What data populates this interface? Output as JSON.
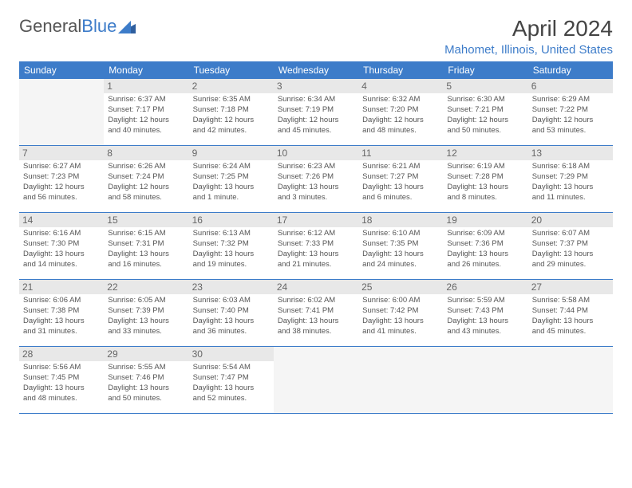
{
  "logo": {
    "text1": "General",
    "text2": "Blue"
  },
  "title": "April 2024",
  "location": "Mahomet, Illinois, United States",
  "colors": {
    "header_bg": "#3d7cc9",
    "header_text": "#ffffff",
    "daynum_bg": "#e8e8e8",
    "border": "#3d7cc9",
    "text": "#555555",
    "accent": "#3d7cc9"
  },
  "days_of_week": [
    "Sunday",
    "Monday",
    "Tuesday",
    "Wednesday",
    "Thursday",
    "Friday",
    "Saturday"
  ],
  "weeks": [
    [
      null,
      {
        "n": "1",
        "sr": "Sunrise: 6:37 AM",
        "ss": "Sunset: 7:17 PM",
        "d1": "Daylight: 12 hours",
        "d2": "and 40 minutes."
      },
      {
        "n": "2",
        "sr": "Sunrise: 6:35 AM",
        "ss": "Sunset: 7:18 PM",
        "d1": "Daylight: 12 hours",
        "d2": "and 42 minutes."
      },
      {
        "n": "3",
        "sr": "Sunrise: 6:34 AM",
        "ss": "Sunset: 7:19 PM",
        "d1": "Daylight: 12 hours",
        "d2": "and 45 minutes."
      },
      {
        "n": "4",
        "sr": "Sunrise: 6:32 AM",
        "ss": "Sunset: 7:20 PM",
        "d1": "Daylight: 12 hours",
        "d2": "and 48 minutes."
      },
      {
        "n": "5",
        "sr": "Sunrise: 6:30 AM",
        "ss": "Sunset: 7:21 PM",
        "d1": "Daylight: 12 hours",
        "d2": "and 50 minutes."
      },
      {
        "n": "6",
        "sr": "Sunrise: 6:29 AM",
        "ss": "Sunset: 7:22 PM",
        "d1": "Daylight: 12 hours",
        "d2": "and 53 minutes."
      }
    ],
    [
      {
        "n": "7",
        "sr": "Sunrise: 6:27 AM",
        "ss": "Sunset: 7:23 PM",
        "d1": "Daylight: 12 hours",
        "d2": "and 56 minutes."
      },
      {
        "n": "8",
        "sr": "Sunrise: 6:26 AM",
        "ss": "Sunset: 7:24 PM",
        "d1": "Daylight: 12 hours",
        "d2": "and 58 minutes."
      },
      {
        "n": "9",
        "sr": "Sunrise: 6:24 AM",
        "ss": "Sunset: 7:25 PM",
        "d1": "Daylight: 13 hours",
        "d2": "and 1 minute."
      },
      {
        "n": "10",
        "sr": "Sunrise: 6:23 AM",
        "ss": "Sunset: 7:26 PM",
        "d1": "Daylight: 13 hours",
        "d2": "and 3 minutes."
      },
      {
        "n": "11",
        "sr": "Sunrise: 6:21 AM",
        "ss": "Sunset: 7:27 PM",
        "d1": "Daylight: 13 hours",
        "d2": "and 6 minutes."
      },
      {
        "n": "12",
        "sr": "Sunrise: 6:19 AM",
        "ss": "Sunset: 7:28 PM",
        "d1": "Daylight: 13 hours",
        "d2": "and 8 minutes."
      },
      {
        "n": "13",
        "sr": "Sunrise: 6:18 AM",
        "ss": "Sunset: 7:29 PM",
        "d1": "Daylight: 13 hours",
        "d2": "and 11 minutes."
      }
    ],
    [
      {
        "n": "14",
        "sr": "Sunrise: 6:16 AM",
        "ss": "Sunset: 7:30 PM",
        "d1": "Daylight: 13 hours",
        "d2": "and 14 minutes."
      },
      {
        "n": "15",
        "sr": "Sunrise: 6:15 AM",
        "ss": "Sunset: 7:31 PM",
        "d1": "Daylight: 13 hours",
        "d2": "and 16 minutes."
      },
      {
        "n": "16",
        "sr": "Sunrise: 6:13 AM",
        "ss": "Sunset: 7:32 PM",
        "d1": "Daylight: 13 hours",
        "d2": "and 19 minutes."
      },
      {
        "n": "17",
        "sr": "Sunrise: 6:12 AM",
        "ss": "Sunset: 7:33 PM",
        "d1": "Daylight: 13 hours",
        "d2": "and 21 minutes."
      },
      {
        "n": "18",
        "sr": "Sunrise: 6:10 AM",
        "ss": "Sunset: 7:35 PM",
        "d1": "Daylight: 13 hours",
        "d2": "and 24 minutes."
      },
      {
        "n": "19",
        "sr": "Sunrise: 6:09 AM",
        "ss": "Sunset: 7:36 PM",
        "d1": "Daylight: 13 hours",
        "d2": "and 26 minutes."
      },
      {
        "n": "20",
        "sr": "Sunrise: 6:07 AM",
        "ss": "Sunset: 7:37 PM",
        "d1": "Daylight: 13 hours",
        "d2": "and 29 minutes."
      }
    ],
    [
      {
        "n": "21",
        "sr": "Sunrise: 6:06 AM",
        "ss": "Sunset: 7:38 PM",
        "d1": "Daylight: 13 hours",
        "d2": "and 31 minutes."
      },
      {
        "n": "22",
        "sr": "Sunrise: 6:05 AM",
        "ss": "Sunset: 7:39 PM",
        "d1": "Daylight: 13 hours",
        "d2": "and 33 minutes."
      },
      {
        "n": "23",
        "sr": "Sunrise: 6:03 AM",
        "ss": "Sunset: 7:40 PM",
        "d1": "Daylight: 13 hours",
        "d2": "and 36 minutes."
      },
      {
        "n": "24",
        "sr": "Sunrise: 6:02 AM",
        "ss": "Sunset: 7:41 PM",
        "d1": "Daylight: 13 hours",
        "d2": "and 38 minutes."
      },
      {
        "n": "25",
        "sr": "Sunrise: 6:00 AM",
        "ss": "Sunset: 7:42 PM",
        "d1": "Daylight: 13 hours",
        "d2": "and 41 minutes."
      },
      {
        "n": "26",
        "sr": "Sunrise: 5:59 AM",
        "ss": "Sunset: 7:43 PM",
        "d1": "Daylight: 13 hours",
        "d2": "and 43 minutes."
      },
      {
        "n": "27",
        "sr": "Sunrise: 5:58 AM",
        "ss": "Sunset: 7:44 PM",
        "d1": "Daylight: 13 hours",
        "d2": "and 45 minutes."
      }
    ],
    [
      {
        "n": "28",
        "sr": "Sunrise: 5:56 AM",
        "ss": "Sunset: 7:45 PM",
        "d1": "Daylight: 13 hours",
        "d2": "and 48 minutes."
      },
      {
        "n": "29",
        "sr": "Sunrise: 5:55 AM",
        "ss": "Sunset: 7:46 PM",
        "d1": "Daylight: 13 hours",
        "d2": "and 50 minutes."
      },
      {
        "n": "30",
        "sr": "Sunrise: 5:54 AM",
        "ss": "Sunset: 7:47 PM",
        "d1": "Daylight: 13 hours",
        "d2": "and 52 minutes."
      },
      null,
      null,
      null,
      null
    ]
  ]
}
